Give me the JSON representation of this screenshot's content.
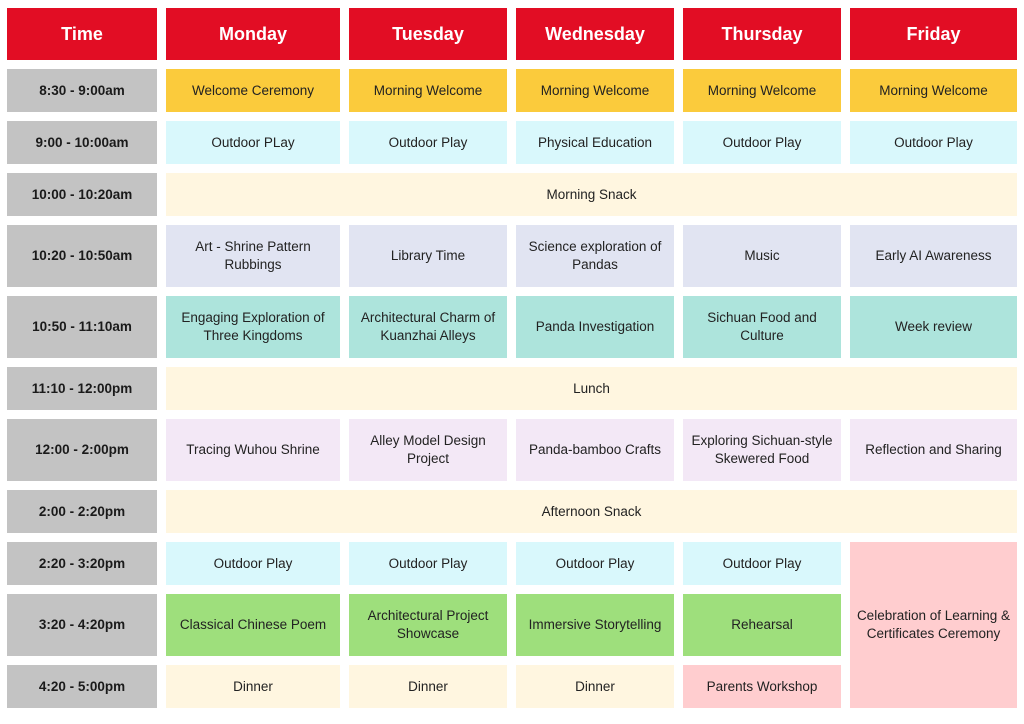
{
  "header": {
    "time": "Time",
    "monday": "Monday",
    "tuesday": "Tuesday",
    "wednesday": "Wednesday",
    "thursday": "Thursday",
    "friday": "Friday"
  },
  "times": [
    "8:30 - 9:00am",
    "9:00 - 10:00am",
    "10:00 - 10:20am",
    "10:20 - 10:50am",
    "10:50 - 11:10am",
    "11:10 - 12:00pm",
    "12:00 - 2:00pm",
    "2:00 - 2:20pm",
    "2:20 - 3:20pm",
    "3:20 - 4:20pm",
    "4:20 - 5:00pm"
  ],
  "rows": {
    "r1": {
      "mon": "Welcome Ceremony",
      "tue": "Morning Welcome",
      "wed": "Morning Welcome",
      "thu": "Morning Welcome",
      "fri": "Morning Welcome"
    },
    "r2": {
      "mon": "Outdoor PLay",
      "tue": "Outdoor Play",
      "wed": "Physical Education",
      "thu": "Outdoor Play",
      "fri": "Outdoor Play"
    },
    "r3": {
      "all": "Morning Snack"
    },
    "r4": {
      "mon": "Art - Shrine Pattern Rubbings",
      "tue": "Library Time",
      "wed": "Science exploration of Pandas",
      "thu": "Music",
      "fri": "Early AI Awareness"
    },
    "r5": {
      "mon": "Engaging Exploration of Three Kingdoms",
      "tue": "Architectural Charm of Kuanzhai Alleys",
      "wed": "Panda Investigation",
      "thu": "Sichuan Food and Culture",
      "fri": "Week review"
    },
    "r6": {
      "all": "Lunch"
    },
    "r7": {
      "mon": "Tracing Wuhou Shrine",
      "tue": "Alley Model Design Project",
      "wed": "Panda-bamboo Crafts",
      "thu": "Exploring Sichuan-style Skewered Food",
      "fri": "Reflection and Sharing"
    },
    "r8": {
      "all": "Afternoon Snack"
    },
    "r9": {
      "mon": "Outdoor Play",
      "tue": "Outdoor Play",
      "wed": "Outdoor Play",
      "thu": "Outdoor Play"
    },
    "r10": {
      "mon": "Classical Chinese Poem",
      "tue": "Architectural Project Showcase",
      "wed": "Immersive Storytelling",
      "thu": "Rehearsal"
    },
    "r11": {
      "mon": "Dinner",
      "tue": "Dinner",
      "wed": "Dinner",
      "thu": "Parents Workshop"
    },
    "friday_afternoon": "Celebration of Learning & Certificates Ceremony"
  },
  "colors": {
    "header": "#e20d24",
    "time": "#c3c3c3",
    "welcome": "#fbcb3c",
    "outdoor": "#d9f8fc",
    "snack": "#fff6e0",
    "morning_block": "#e1e4f2",
    "exploration": "#ade4dc",
    "afternoon_block": "#f3e8f6",
    "project": "#9edf7c",
    "special": "#ffcdcf"
  }
}
